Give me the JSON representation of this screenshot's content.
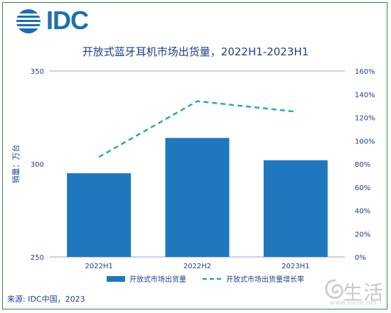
{
  "brand": {
    "logo_text": "IDC"
  },
  "chart_data": {
    "type": "bar",
    "title": "开放式蓝牙耳机市场出货量，2022H1-2023H1",
    "categories": [
      "2022H1",
      "2022H2",
      "2023H1"
    ],
    "series": [
      {
        "name": "开放式市场出货量",
        "type": "bar",
        "axis": "left",
        "values": [
          295,
          314,
          302
        ],
        "color": "#1f77be"
      },
      {
        "name": "开放式市场出货量增长率",
        "type": "line",
        "axis": "right",
        "style": "dashed",
        "values": [
          0.86,
          1.34,
          1.25
        ],
        "color": "#2aa8b5"
      }
    ],
    "ylabel": "销量：万台",
    "ylim": [
      250,
      350
    ],
    "y_ticks": [
      "250",
      "300",
      "350"
    ],
    "y2lim": [
      0,
      1.6
    ],
    "y2_ticks": [
      "0%",
      "20%",
      "40%",
      "60%",
      "80%",
      "100%",
      "120%",
      "140%",
      "160%"
    ],
    "grid": false,
    "legend": "bottom"
  },
  "source": "来源: IDC中国，2023",
  "watermark": {
    "text": "生活",
    "url": "www.solife.net"
  }
}
